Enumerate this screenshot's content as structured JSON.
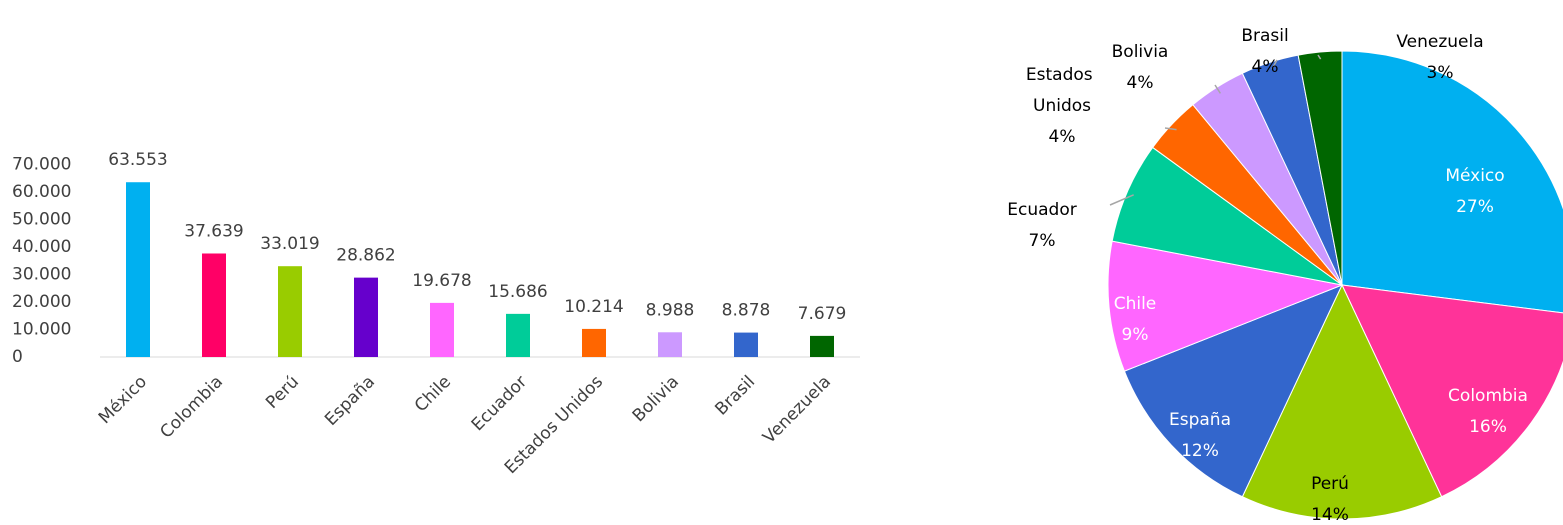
{
  "chart_data": [
    {
      "type": "bar",
      "categories": [
        "México",
        "Colombia",
        "Perú",
        "España",
        "Chile",
        "Ecuador",
        "Estados Unidos",
        "Bolivia",
        "Brasil",
        "Venezuela"
      ],
      "values": [
        63553,
        37639,
        33019,
        28862,
        19678,
        15686,
        10214,
        8988,
        8878,
        7679
      ],
      "value_labels": [
        "63.553",
        "37.639",
        "33.019",
        "28.862",
        "19.678",
        "15.686",
        "10.214",
        "8.988",
        "8.878",
        "7.679"
      ],
      "colors": [
        "#00b0f0",
        "#ff0066",
        "#99cc00",
        "#6600cc",
        "#ff66ff",
        "#00cc99",
        "#ff6600",
        "#cc99ff",
        "#3366cc",
        "#006600"
      ],
      "ylim": [
        0,
        70000
      ],
      "yticks": [
        0,
        {
          "value": 10000,
          "label": "10.000"
        },
        {
          "value": 20000,
          "label": "20.000"
        },
        {
          "value": 30000,
          "label": "30.000"
        },
        {
          "value": 40000,
          "label": "40.000"
        },
        {
          "value": 50000,
          "label": "50.000"
        },
        {
          "value": 60000,
          "label": "60.000"
        },
        {
          "value": 70000,
          "label": "70.000"
        }
      ]
    },
    {
      "type": "pie",
      "categories": [
        "México",
        "Colombia",
        "Perú",
        "España",
        "Chile",
        "Ecuador",
        "Estados Unidos",
        "Bolivia",
        "Brasil",
        "Venezuela"
      ],
      "values": [
        27,
        16,
        14,
        12,
        9,
        7,
        4,
        4,
        4,
        3
      ],
      "value_labels": [
        "27%",
        "16%",
        "14%",
        "12%",
        "9%",
        "7%",
        "4%",
        "4%",
        "4%",
        "3%"
      ],
      "colors": [
        "#00b0f0",
        "#ff3399",
        "#99cc00",
        "#3366cc",
        "#ff66ff",
        "#00cc99",
        "#ff6600",
        "#cc99ff",
        "#3366cc",
        "#006600"
      ]
    }
  ]
}
